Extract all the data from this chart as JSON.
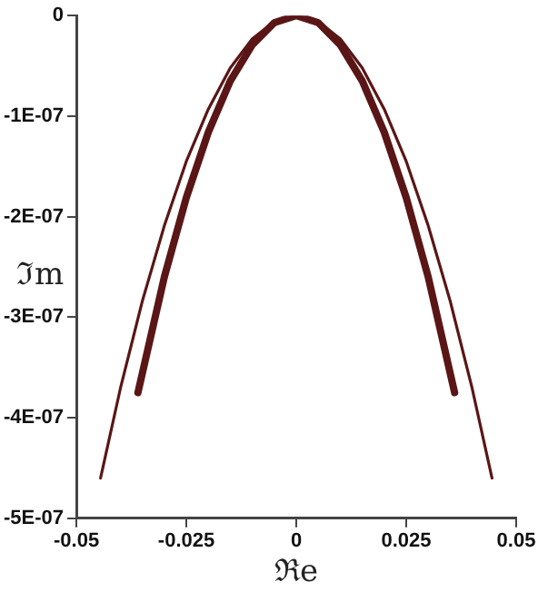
{
  "chart_data": {
    "type": "line",
    "xlabel": "ℜe",
    "ylabel": "ℑm",
    "marker": "none",
    "grid": false,
    "legend": false,
    "xlim": [
      -0.05,
      0.05
    ],
    "xticks": [
      -0.05,
      -0.025,
      0,
      0.025,
      0.05
    ],
    "ylim": [
      -5e-07,
      0
    ],
    "yticks": [
      {
        "value": -5e-07,
        "label": "-5E-07"
      },
      {
        "value": -4e-07,
        "label": "-4E-07"
      },
      {
        "value": -3e-07,
        "label": "-3E-07"
      },
      {
        "value": -2e-07,
        "label": "-2E-07"
      },
      {
        "value": -1e-07,
        "label": "-1E-07"
      },
      0
    ],
    "series": [
      {
        "color": "#5a1616",
        "x": [
          -0.0445,
          -0.04,
          -0.035,
          -0.03,
          -0.025,
          -0.02,
          -0.015,
          -0.01,
          -0.005,
          0,
          0.005,
          0.01,
          0.015,
          0.02,
          0.025,
          0.03,
          0.035,
          0.04,
          0.0445
        ],
        "values": [
          -4.6e-07,
          -3.71e-07,
          -2.84e-07,
          -2.09e-07,
          -1.45e-07,
          -9.3e-08,
          -5.2e-08,
          -2.3e-08,
          -6e-09,
          0,
          -6e-09,
          -2.3e-08,
          -5.2e-08,
          -9.3e-08,
          -1.45e-07,
          -2.09e-07,
          -2.84e-07,
          -3.71e-07,
          -4.6e-07
        ]
      },
      {
        "color": "#5a1616",
        "x": [
          -0.036,
          -0.03,
          -0.025,
          -0.02,
          -0.015,
          -0.01,
          -0.005,
          0,
          0.005,
          0.01,
          0.015,
          0.02,
          0.025,
          0.03,
          0.036
        ],
        "values": [
          -3.75e-07,
          -2.6e-07,
          -1.81e-07,
          -1.16e-07,
          -6.5e-08,
          -2.9e-08,
          -7e-09,
          0,
          -7e-09,
          -2.9e-08,
          -6.5e-08,
          -1.16e-07,
          -1.81e-07,
          -2.6e-07,
          -3.75e-07
        ]
      }
    ]
  }
}
